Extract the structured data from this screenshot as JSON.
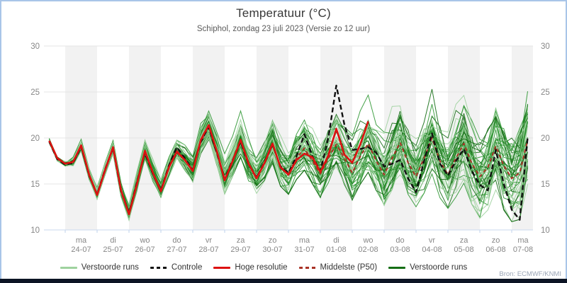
{
  "header": {
    "title": "Temperatuur (°C)",
    "subtitle": "Schiphol, zondag 23 juli 2023 (Versie zo 12 uur)"
  },
  "source_label": "Bron: ECMWF/KNMI",
  "theme": {
    "border": "#a9c5e8",
    "bottom_bar": "#0c1424",
    "band": "#f2f2f2",
    "grid": "#e4e4e4",
    "baseline": "#c9d8ee",
    "tick_label": "#878787",
    "title": "#383838",
    "subtitle": "#5a5a5a",
    "legend_text": "#333333",
    "source": "#9aa4b5"
  },
  "legend": {
    "items": [
      {
        "label": "Verstoorde runs",
        "color": "#9ed29e",
        "dash": false
      },
      {
        "label": "Controle",
        "color": "#111111",
        "dash": true
      },
      {
        "label": "Hoge resolutie",
        "color": "#dd1111",
        "dash": false
      },
      {
        "label": "Middelste (P50)",
        "color": "#a93226",
        "dash": true
      },
      {
        "label": "Verstoorde runs",
        "color": "#156e15",
        "dash": false
      }
    ]
  },
  "chart_data": {
    "type": "line",
    "title": "Temperatuur (°C)",
    "subtitle": "Schiphol, zondag 23 juli 2023 (Versie zo 12 uur)",
    "ylabel": "",
    "xlabel": "",
    "ylim": [
      10,
      30
    ],
    "yticks": [
      10,
      15,
      20,
      25,
      30
    ],
    "grid": true,
    "legend_position": "bottom",
    "time_step_hours": 6,
    "run_start": "zo 23-07 12 uur",
    "total_hours": 360,
    "days": [
      {
        "weekday": "ma",
        "date": "24-07"
      },
      {
        "weekday": "di",
        "date": "25-07"
      },
      {
        "weekday": "wo",
        "date": "26-07"
      },
      {
        "weekday": "do",
        "date": "27-07"
      },
      {
        "weekday": "vr",
        "date": "28-07"
      },
      {
        "weekday": "za",
        "date": "29-07"
      },
      {
        "weekday": "zo",
        "date": "30-07"
      },
      {
        "weekday": "ma",
        "date": "31-07"
      },
      {
        "weekday": "di",
        "date": "01-08"
      },
      {
        "weekday": "wo",
        "date": "02-08"
      },
      {
        "weekday": "do",
        "date": "03-08"
      },
      {
        "weekday": "vr",
        "date": "04-08"
      },
      {
        "weekday": "za",
        "date": "05-08"
      },
      {
        "weekday": "zo",
        "date": "06-08"
      },
      {
        "weekday": "ma",
        "date": "07-08"
      }
    ],
    "series": [
      {
        "name": "Verstoorde runs",
        "type": "ensemble",
        "colors": [
          "#9ed29e",
          "#2f9733",
          "#156e15"
        ],
        "color_weights": [
          0.3,
          0.45,
          0.25
        ],
        "spread": {
          "count": 50,
          "base": 0.32,
          "growth": 4.6,
          "exponent": 1.35,
          "down": 1.05,
          "up": 2.2,
          "seed": 20230723
        },
        "note": "50 perturbed EPS members; tight bundle at start, envelope widening to about 11-30 °C by 07-08"
      },
      {
        "name": "Controle",
        "color": "#111111",
        "dash": true,
        "values": [
          19.6,
          17.7,
          17.1,
          17.3,
          19.1,
          15.9,
          13.9,
          16.6,
          18.9,
          14.2,
          11.8,
          15.2,
          18.4,
          16.1,
          14.3,
          17.0,
          19.0,
          17.8,
          16.5,
          19.6,
          21.2,
          18.4,
          15.5,
          17.6,
          19.6,
          17.1,
          15.7,
          17.4,
          19.3,
          16.9,
          16.2,
          18.0,
          20.4,
          18.0,
          16.4,
          20.0,
          25.7,
          21.5,
          18.7,
          18.8,
          19.0,
          18.4,
          16.9,
          17.2,
          17.6,
          15.6,
          14.1,
          17.5,
          20.5,
          17.2,
          15.9,
          17.5,
          18.8,
          16.4,
          14.9,
          14.3,
          18.7,
          15.0,
          12.2,
          11.1,
          20.1
        ]
      },
      {
        "name": "Hoge resolutie",
        "color": "#dd1111",
        "dash": false,
        "values": [
          19.7,
          17.8,
          17.2,
          17.4,
          19.2,
          16.0,
          13.8,
          16.5,
          19.0,
          14.3,
          11.7,
          15.0,
          18.6,
          16.2,
          14.2,
          16.8,
          18.5,
          17.6,
          16.4,
          19.8,
          21.4,
          18.6,
          15.4,
          17.5,
          19.8,
          17.2,
          15.6,
          17.3,
          19.4,
          16.8,
          16.0,
          17.6,
          18.3,
          17.9,
          16.3,
          18.1,
          21.0,
          18.2,
          17.3,
          19.3,
          21.8
        ]
      },
      {
        "name": "Middelste (P50)",
        "color": "#a93226",
        "dash": true,
        "values": [
          19.7,
          17.7,
          17.2,
          17.4,
          19.1,
          16.0,
          13.9,
          16.6,
          18.9,
          14.3,
          11.8,
          15.1,
          18.5,
          16.2,
          14.3,
          16.8,
          18.6,
          17.7,
          16.5,
          19.6,
          21.2,
          18.5,
          15.5,
          17.5,
          19.6,
          17.1,
          15.7,
          17.3,
          19.3,
          16.9,
          16.1,
          17.8,
          18.9,
          17.5,
          16.1,
          17.8,
          19.3,
          17.8,
          16.2,
          18.0,
          19.4,
          17.5,
          16.0,
          17.8,
          19.5,
          17.3,
          15.8,
          17.8,
          20.0,
          17.5,
          16.0,
          17.8,
          19.4,
          17.2,
          15.8,
          16.8,
          19.1,
          17.0,
          15.6,
          16.2,
          19.8
        ]
      }
    ]
  }
}
